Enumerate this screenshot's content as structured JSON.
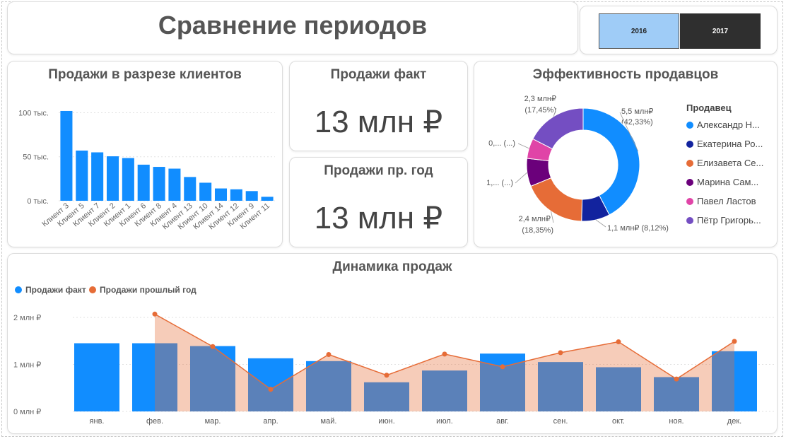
{
  "header": {
    "title": "Сравнение периодов"
  },
  "slicer": {
    "years": [
      "2016",
      "2017"
    ]
  },
  "kpi": {
    "fact": {
      "title": "Продажи факт",
      "value": "13 млн ₽"
    },
    "prev": {
      "title": "Продажи пр. год",
      "value": "13 млн ₽"
    }
  },
  "clients_chart": {
    "title": "Продажи в разрезе клиентов"
  },
  "effectiveness": {
    "title": "Эффективность продавцов",
    "legend_title": "Продавец",
    "sellers": [
      {
        "name": "Александр Н...",
        "color": "#118DFF"
      },
      {
        "name": "Екатерина Ро...",
        "color": "#12239E"
      },
      {
        "name": "Елизавета Се...",
        "color": "#E66C37"
      },
      {
        "name": "Марина Сам...",
        "color": "#6B007B"
      },
      {
        "name": "Павел Ластов",
        "color": "#E044A7"
      },
      {
        "name": "Пётр Григорь...",
        "color": "#744EC2"
      }
    ],
    "slice_labels": [
      "5,5 млн₽",
      "(42,33%)",
      "1,1 млн₽ (8,12%)",
      "2,4 млн₽",
      "(18,35%)",
      "1,... (...)",
      "0,... (...)",
      "2,3 млн₽",
      "(17,45%)"
    ]
  },
  "dynamics": {
    "title": "Динамика продаж",
    "legend": [
      {
        "name": "Продажи факт",
        "color": "#118DFF"
      },
      {
        "name": "Продажи прошлый год",
        "color": "#E66C37"
      }
    ]
  },
  "chart_data": [
    {
      "type": "bar",
      "title": "Продажи в разрезе клиентов",
      "categories": [
        "Клиент 3",
        "Клиент 5",
        "Клиент 7",
        "Клиент 2",
        "Клиент 1",
        "Клиент 6",
        "Клиент 8",
        "Клиент 4",
        "Клиент 13",
        "Клиент 10",
        "Клиент 14",
        "Клиент 12",
        "Клиент 9",
        "Клиент 11"
      ],
      "values": [
        102000,
        57000,
        55000,
        50500,
        48500,
        41000,
        38500,
        36500,
        27000,
        20500,
        14000,
        13000,
        11000,
        4500
      ],
      "y_ticks": [
        "100 тыс.",
        "50 тыс.",
        "0 тыс."
      ],
      "ylim": [
        0,
        110000
      ],
      "grid": true,
      "color": "#118DFF"
    },
    {
      "type": "pie",
      "title": "Эффективность продавцов",
      "labels": [
        "Александр Н...",
        "Екатерина Ро...",
        "Елизавета Се...",
        "Марина Сам...",
        "Павел Ластов",
        "Пётр Григорь..."
      ],
      "values": [
        42.33,
        8.12,
        18.35,
        8.0,
        5.75,
        17.45
      ],
      "colors": [
        "#118DFF",
        "#12239E",
        "#E66C37",
        "#6B007B",
        "#E044A7",
        "#744EC2"
      ],
      "legend_placement": "right"
    },
    {
      "type": "bar",
      "title": "Динамика продаж",
      "categories": [
        "янв.",
        "фев.",
        "мар.",
        "апр.",
        "май.",
        "июн.",
        "июл.",
        "авг.",
        "сен.",
        "окт.",
        "ноя.",
        "дек."
      ],
      "series": [
        {
          "name": "Продажи факт",
          "type": "bar",
          "color": "#118DFF",
          "values": [
            1.45,
            1.45,
            1.39,
            1.13,
            1.07,
            0.62,
            0.87,
            1.23,
            1.05,
            0.94,
            0.73,
            1.28
          ]
        },
        {
          "name": "Продажи прошлый год",
          "type": "area",
          "color": "#E66C37",
          "values": [
            null,
            2.07,
            1.38,
            0.47,
            1.21,
            0.77,
            1.22,
            0.95,
            1.25,
            1.48,
            0.69,
            1.49
          ]
        }
      ],
      "y_ticks": [
        "2 млн ₽",
        "1 млн ₽",
        "0 млн ₽"
      ],
      "ylim": [
        0,
        2.3
      ],
      "grid": true,
      "legend_placement": "top-left"
    }
  ]
}
